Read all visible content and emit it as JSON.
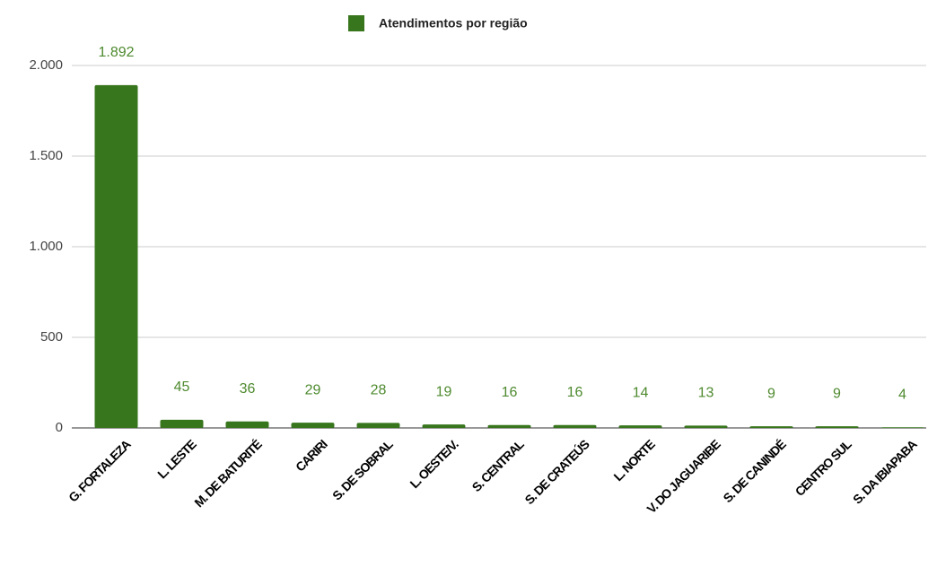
{
  "chart_data": {
    "type": "bar",
    "legend": "top",
    "series": [
      {
        "name": "Atendimentos por região",
        "color": "#38761d",
        "values": [
          1892,
          45,
          36,
          29,
          28,
          19,
          16,
          16,
          14,
          13,
          9,
          9,
          4
        ],
        "value_labels": [
          "1.892",
          "45",
          "36",
          "29",
          "28",
          "19",
          "16",
          "16",
          "14",
          "13",
          "9",
          "9",
          "4"
        ]
      }
    ],
    "categories": [
      "G. FORTALEZA",
      "L. LESTE",
      "M. DE BATURITÉ",
      "CARIRI",
      "S. DE SOBRAL",
      "L. OESTE/V.",
      "S. CENTRAL",
      "S. DE CRATEÚS",
      "L. NORTE",
      "V. DO JAGUARIBE",
      "S. DE CANINDÉ",
      "CENTRO SUL",
      "S. DA IBIAPABA"
    ],
    "ylim": [
      0,
      2000
    ],
    "yticks": [
      0,
      500,
      {
        "value": 1000,
        "label": "1.000"
      },
      {
        "value": 1500,
        "label": "1.500"
      },
      {
        "value": 2000,
        "label": "2.000"
      }
    ],
    "grid": true
  }
}
